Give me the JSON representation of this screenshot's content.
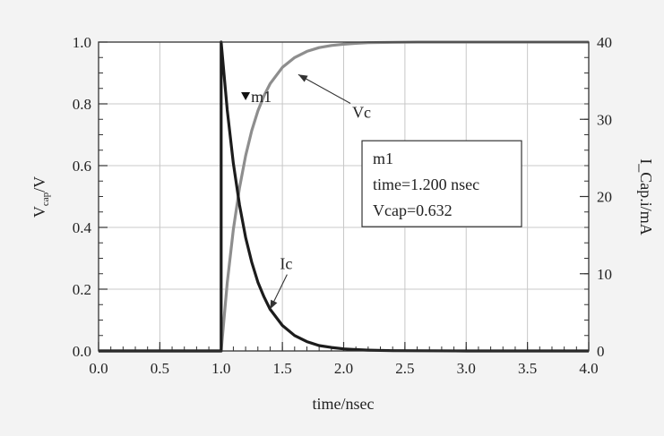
{
  "chart_data": {
    "type": "line",
    "title": "",
    "xlabel": "time/nsec",
    "ylabel": "V_cap/V",
    "ylabel_main": "V",
    "ylabel_sub": "cap",
    "ylabel_tail": "/V",
    "y2label": "I_Cap.i/mA",
    "xlim": [
      0.0,
      4.0
    ],
    "ylim": [
      0.0,
      1.0
    ],
    "y2lim": [
      0,
      40
    ],
    "grid": true,
    "x_ticks": [
      "0.0",
      "0.5",
      "1.0",
      "1.5",
      "2.0",
      "2.5",
      "3.0",
      "3.5",
      "4.0"
    ],
    "y_ticks": [
      "0.0",
      "0.2",
      "0.4",
      "0.6",
      "0.8",
      "1.0"
    ],
    "y2_ticks": [
      "0",
      "10",
      "20",
      "30",
      "40"
    ],
    "series": [
      {
        "name": "Vc",
        "axis": "left",
        "color": "#8e8e8e",
        "x": [
          0.0,
          1.0,
          1.05,
          1.1,
          1.15,
          1.2,
          1.25,
          1.3,
          1.35,
          1.4,
          1.5,
          1.6,
          1.7,
          1.8,
          1.9,
          2.0,
          2.1,
          2.2,
          2.4,
          2.6,
          3.0,
          3.5,
          4.0
        ],
        "y": [
          0.0,
          0.0,
          0.221,
          0.393,
          0.528,
          0.632,
          0.713,
          0.777,
          0.826,
          0.865,
          0.918,
          0.95,
          0.97,
          0.982,
          0.989,
          0.993,
          0.996,
          0.998,
          0.999,
          1.0,
          1.0,
          1.0,
          1.0
        ]
      },
      {
        "name": "Ic",
        "axis": "right",
        "color": "#1c1c1c",
        "x": [
          0.0,
          1.0,
          1.0,
          1.05,
          1.1,
          1.15,
          1.2,
          1.25,
          1.3,
          1.35,
          1.4,
          1.5,
          1.6,
          1.7,
          1.8,
          1.9,
          2.0,
          2.1,
          2.2,
          2.4,
          3.0,
          3.5,
          4.0
        ],
        "y": [
          0.0,
          0.0,
          40.0,
          31.2,
          24.3,
          18.9,
          14.7,
          11.5,
          8.9,
          7.0,
          5.4,
          3.3,
          2.0,
          1.2,
          0.7,
          0.45,
          0.27,
          0.17,
          0.1,
          0.04,
          0.0,
          0.0,
          0.0
        ]
      }
    ],
    "annotations": {
      "vc_label": {
        "text": "Vc",
        "text_at": [
          2.07,
          0.755
        ],
        "arrow_to": [
          1.63,
          0.895
        ]
      },
      "ic_label": {
        "text": "Ic",
        "text_at": [
          1.48,
          0.265
        ],
        "arrow_to": [
          1.4,
          5.4
        ]
      },
      "marker": {
        "name": "m1",
        "x": 1.2,
        "y": 0.632
      },
      "marker_box": {
        "anchor": [
          2.15,
          0.64
        ],
        "lines": [
          "m1",
          "time=1.200 nsec",
          "Vcap=0.632"
        ]
      }
    }
  }
}
